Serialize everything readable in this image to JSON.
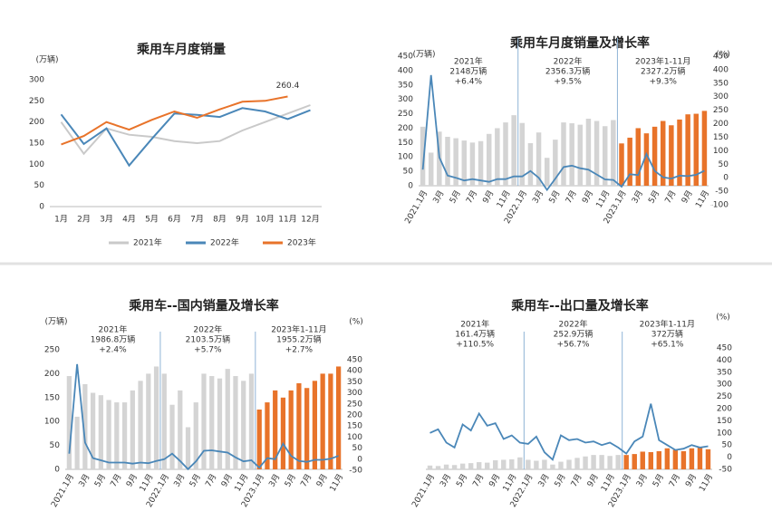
{
  "chart_data": [
    {
      "type": "line",
      "title": "乘用车月度销量",
      "y_label": "(万辆)",
      "categories": [
        "1月",
        "2月",
        "3月",
        "4月",
        "5月",
        "6月",
        "7月",
        "8月",
        "9月",
        "10月",
        "11月",
        "12月"
      ],
      "ylim": [
        0,
        300
      ],
      "yticks": [
        0,
        50,
        100,
        150,
        200,
        250,
        300
      ],
      "series": [
        {
          "name": "2021年",
          "color": "#c9c9c9",
          "values": [
            200,
            125,
            185,
            170,
            165,
            155,
            150,
            155,
            180,
            200,
            220,
            240
          ]
        },
        {
          "name": "2022年",
          "color": "#4a87b8",
          "values": [
            218,
            148,
            185,
            97,
            160,
            220,
            217,
            212,
            233,
            225,
            207,
            228
          ]
        },
        {
          "name": "2023年",
          "color": "#e8732a",
          "values": [
            147,
            167,
            200,
            182,
            205,
            225,
            210,
            230,
            248,
            250,
            260.4,
            null
          ],
          "value_labels": [
            null,
            null,
            null,
            null,
            null,
            null,
            null,
            null,
            null,
            null,
            "260.4",
            null
          ]
        }
      ]
    },
    {
      "type": "combo",
      "title": "乘用车月度销量及增长率",
      "y_label": "(万辆)",
      "y2_label": "(%)",
      "categories": [
        "2021.1月",
        null,
        "3月",
        null,
        "5月",
        null,
        "7月",
        null,
        "9月",
        null,
        "11月",
        null,
        "2022.1月",
        null,
        "3月",
        null,
        "5月",
        null,
        "7月",
        null,
        "9月",
        null,
        "11月",
        null,
        "2023.1月",
        null,
        "3月",
        null,
        "5月",
        null,
        "7月",
        null,
        "9月",
        null,
        "11月"
      ],
      "ylim": [
        0,
        450
      ],
      "yticks": [
        0,
        50,
        100,
        150,
        200,
        250,
        300,
        350,
        400,
        450
      ],
      "y2lim": [
        -100,
        450
      ],
      "y2ticks": [
        -100,
        -50,
        0,
        50,
        100,
        150,
        200,
        250,
        300,
        350,
        400,
        450
      ],
      "annotations": [
        [
          "2021年",
          "2148万辆",
          "+6.4%"
        ],
        [
          "2022年",
          "2356.3万辆",
          "+9.5%"
        ],
        [
          "2023年1-11月",
          "2327.2万辆",
          "+9.3%"
        ]
      ],
      "series": [
        {
          "type": "bar",
          "colors": [
            "#d4d4d4",
            "#d4d4d4",
            "#d4d4d4",
            "#d4d4d4",
            "#d4d4d4",
            "#d4d4d4",
            "#d4d4d4",
            "#d4d4d4",
            "#d4d4d4",
            "#d4d4d4",
            "#d4d4d4",
            "#d4d4d4",
            "#d4d4d4",
            "#d4d4d4",
            "#d4d4d4",
            "#d4d4d4",
            "#d4d4d4",
            "#d4d4d4",
            "#d4d4d4",
            "#d4d4d4",
            "#d4d4d4",
            "#d4d4d4",
            "#d4d4d4",
            "#d4d4d4",
            "#e8732a",
            "#e8732a",
            "#e8732a",
            "#e8732a",
            "#e8732a",
            "#e8732a",
            "#e8732a",
            "#e8732a",
            "#e8732a",
            "#e8732a",
            "#e8732a"
          ],
          "values": [
            205,
            115,
            188,
            170,
            165,
            157,
            150,
            155,
            180,
            200,
            220,
            245,
            218,
            148,
            185,
            97,
            160,
            220,
            217,
            212,
            233,
            225,
            207,
            228,
            147,
            167,
            200,
            182,
            205,
            225,
            210,
            230,
            248,
            250,
            260
          ]
        },
        {
          "type": "line",
          "axis": "y2",
          "color": "#4a87b8",
          "values": [
            30,
            380,
            75,
            8,
            0,
            -10,
            -5,
            -10,
            -15,
            -5,
            -5,
            5,
            5,
            25,
            0,
            -45,
            -3,
            40,
            45,
            35,
            30,
            12,
            -6,
            -8,
            -33,
            13,
            10,
            88,
            25,
            2,
            -3,
            8,
            6,
            11,
            26
          ]
        }
      ]
    },
    {
      "type": "combo",
      "title": "乘用车--国内销量及增长率",
      "y_label": "(万辆)",
      "y2_label": "(%)",
      "categories": [
        "2021.1月",
        null,
        "3月",
        null,
        "5月",
        null,
        "7月",
        null,
        "9月",
        null,
        "11月",
        null,
        "2022.1月",
        null,
        "3月",
        null,
        "5月",
        null,
        "7月",
        null,
        "9月",
        null,
        "11月",
        null,
        "2023.1月",
        null,
        "3月",
        null,
        "5月",
        null,
        "7月",
        null,
        "9月",
        null,
        "11月"
      ],
      "ylim": [
        0,
        250
      ],
      "yticks": [
        0,
        50,
        100,
        150,
        200,
        250
      ],
      "y2lim": [
        -50,
        450
      ],
      "y2ticks": [
        -50,
        0,
        50,
        100,
        150,
        200,
        250,
        300,
        350,
        400,
        450
      ],
      "annotations": [
        [
          "2021年",
          "1986.8万辆",
          "+2.4%"
        ],
        [
          "2022年",
          "2103.5万辆",
          "+5.7%"
        ],
        [
          "2023年1-11月",
          "1955.2万辆",
          "+2.7%"
        ]
      ],
      "series": [
        {
          "type": "bar",
          "colors": [
            "#d4d4d4",
            "#d4d4d4",
            "#d4d4d4",
            "#d4d4d4",
            "#d4d4d4",
            "#d4d4d4",
            "#d4d4d4",
            "#d4d4d4",
            "#d4d4d4",
            "#d4d4d4",
            "#d4d4d4",
            "#d4d4d4",
            "#d4d4d4",
            "#d4d4d4",
            "#d4d4d4",
            "#d4d4d4",
            "#d4d4d4",
            "#d4d4d4",
            "#d4d4d4",
            "#d4d4d4",
            "#d4d4d4",
            "#d4d4d4",
            "#d4d4d4",
            "#d4d4d4",
            "#e8732a",
            "#e8732a",
            "#e8732a",
            "#e8732a",
            "#e8732a",
            "#e8732a",
            "#e8732a",
            "#e8732a",
            "#e8732a",
            "#e8732a",
            "#e8732a"
          ],
          "values": [
            195,
            110,
            178,
            160,
            155,
            145,
            140,
            140,
            165,
            185,
            200,
            215,
            200,
            135,
            165,
            88,
            140,
            200,
            195,
            190,
            210,
            195,
            185,
            200,
            125,
            140,
            165,
            150,
            165,
            180,
            170,
            185,
            200,
            200,
            215
          ]
        },
        {
          "type": "line",
          "axis": "y2",
          "color": "#4a87b8",
          "values": [
            25,
            430,
            75,
            5,
            -5,
            -15,
            -15,
            -15,
            -20,
            -15,
            -18,
            -8,
            0,
            25,
            -8,
            -45,
            -10,
            38,
            40,
            35,
            30,
            8,
            -10,
            -5,
            -38,
            5,
            0,
            70,
            15,
            -8,
            -12,
            -3,
            -3,
            2,
            15
          ]
        }
      ]
    },
    {
      "type": "combo",
      "title": "乘用车--出口量及增长率",
      "y2_label": "(%)",
      "categories": [
        "2021.1月",
        null,
        "3月",
        null,
        "5月",
        null,
        "7月",
        null,
        "9月",
        null,
        "11月",
        null,
        "2022.1月",
        null,
        "3月",
        null,
        "5月",
        null,
        "7月",
        null,
        "9月",
        null,
        "11月",
        null,
        "2023.1月",
        null,
        "3月",
        null,
        "5月",
        null,
        "7月",
        null,
        "9月",
        null,
        "11月"
      ],
      "ylim": [
        0,
        250
      ],
      "y2lim": [
        -50,
        450
      ],
      "y2ticks": [
        -50,
        0,
        50,
        100,
        150,
        200,
        250,
        300,
        350,
        400,
        450
      ],
      "annotations": [
        [
          "2021年",
          "161.4万辆",
          "+110.5%"
        ],
        [
          "2022年",
          "252.9万辆",
          "+56.7%"
        ],
        [
          "2023年1-11月",
          "372万辆",
          "+65.1%"
        ]
      ],
      "series": [
        {
          "type": "bar",
          "colors": [
            "#d4d4d4",
            "#d4d4d4",
            "#d4d4d4",
            "#d4d4d4",
            "#d4d4d4",
            "#d4d4d4",
            "#d4d4d4",
            "#d4d4d4",
            "#d4d4d4",
            "#d4d4d4",
            "#d4d4d4",
            "#d4d4d4",
            "#d4d4d4",
            "#d4d4d4",
            "#d4d4d4",
            "#d4d4d4",
            "#d4d4d4",
            "#d4d4d4",
            "#d4d4d4",
            "#d4d4d4",
            "#d4d4d4",
            "#d4d4d4",
            "#d4d4d4",
            "#d4d4d4",
            "#e8732a",
            "#e8732a",
            "#e8732a",
            "#e8732a",
            "#e8732a",
            "#e8732a",
            "#e8732a",
            "#e8732a",
            "#e8732a",
            "#e8732a",
            "#e8732a"
          ],
          "values": [
            8,
            7,
            10,
            9,
            12,
            13,
            15,
            14,
            19,
            20,
            21,
            25,
            20,
            18,
            20,
            10,
            16,
            20,
            24,
            27,
            30,
            30,
            28,
            30,
            30,
            32,
            37,
            36,
            38,
            44,
            41,
            38,
            44,
            46,
            42
          ]
        },
        {
          "type": "line",
          "axis": "y2",
          "color": "#4a87b8",
          "values": [
            100,
            115,
            60,
            40,
            135,
            110,
            180,
            130,
            140,
            75,
            90,
            60,
            55,
            85,
            20,
            -10,
            90,
            70,
            75,
            60,
            65,
            50,
            60,
            40,
            15,
            65,
            85,
            220,
            70,
            50,
            30,
            35,
            50,
            40,
            45
          ]
        }
      ]
    }
  ]
}
